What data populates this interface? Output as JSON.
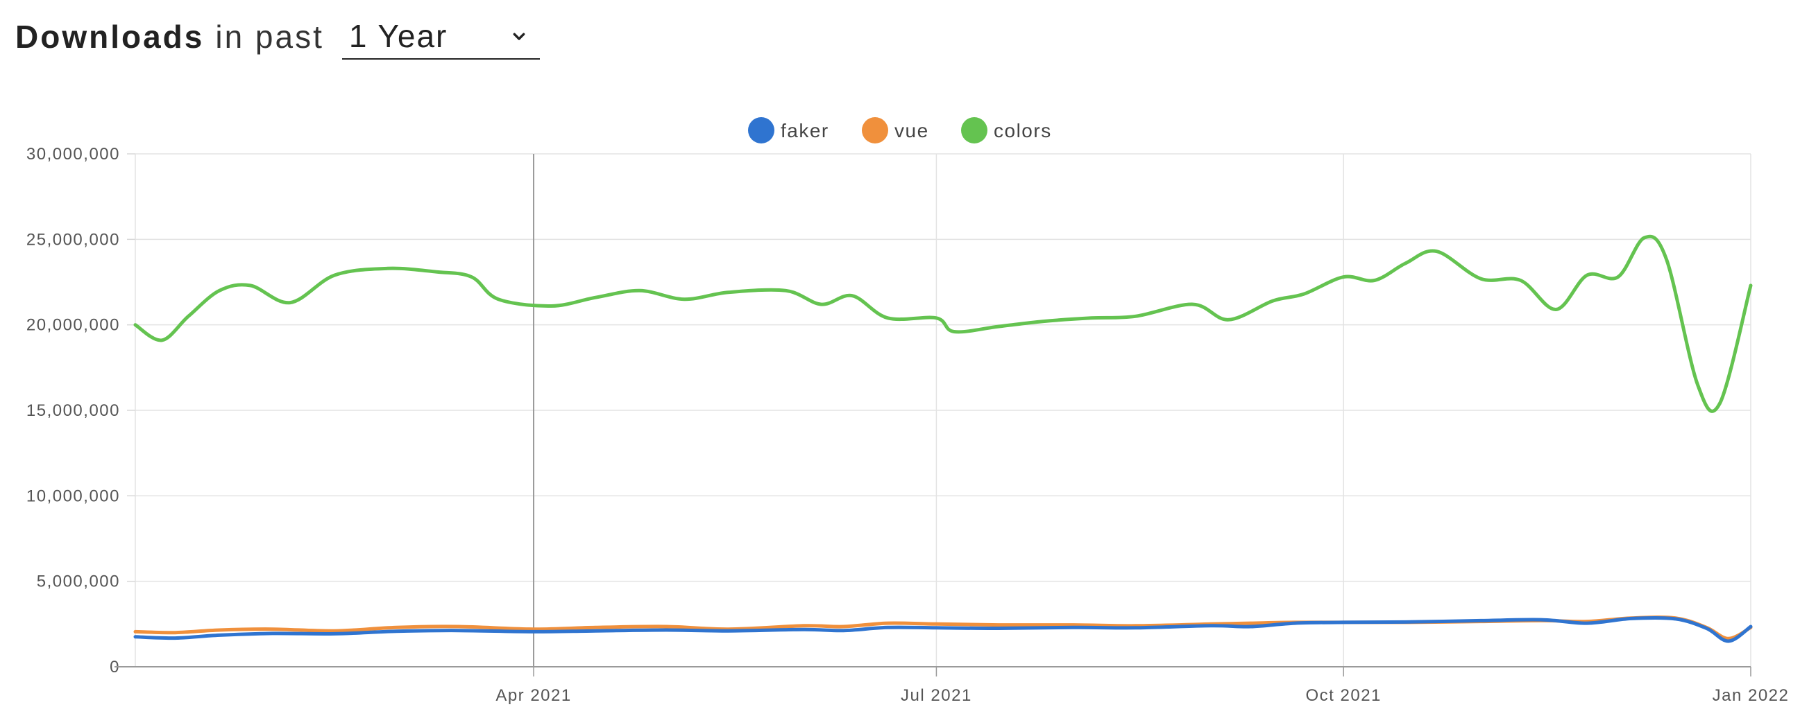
{
  "header": {
    "title": "Downloads",
    "subtitle": "in past",
    "period_value": "1 Year"
  },
  "chart_data": {
    "type": "line",
    "ylim": [
      0,
      30000000
    ],
    "y_ticks": [
      0,
      5000000,
      10000000,
      15000000,
      20000000,
      25000000,
      30000000
    ],
    "y_tick_labels": [
      "0",
      "5,000,000",
      "10,000,000",
      "15,000,000",
      "20,000,000",
      "25,000,000",
      "30,000,000"
    ],
    "x_range": [
      "2021-01-01",
      "2022-01-01"
    ],
    "x_ticks": [
      "2021-04-01",
      "2021-07-01",
      "2021-10-01",
      "2022-01-01"
    ],
    "x_tick_labels": [
      "Apr 2021",
      "Jul 2021",
      "Oct 2021",
      "Jan 2022"
    ],
    "grid": true,
    "legend_position": "top-center",
    "series": [
      {
        "name": "faker",
        "color": "#2f74d0",
        "points": [
          [
            "2021-01-01",
            1750000
          ],
          [
            "2021-01-10",
            1680000
          ],
          [
            "2021-01-20",
            1850000
          ],
          [
            "2021-02-01",
            1950000
          ],
          [
            "2021-02-15",
            1930000
          ],
          [
            "2021-03-01",
            2080000
          ],
          [
            "2021-03-15",
            2120000
          ],
          [
            "2021-04-01",
            2050000
          ],
          [
            "2021-04-15",
            2100000
          ],
          [
            "2021-05-01",
            2150000
          ],
          [
            "2021-05-15",
            2100000
          ],
          [
            "2021-06-01",
            2180000
          ],
          [
            "2021-06-10",
            2120000
          ],
          [
            "2021-06-20",
            2300000
          ],
          [
            "2021-07-01",
            2280000
          ],
          [
            "2021-07-15",
            2250000
          ],
          [
            "2021-08-01",
            2300000
          ],
          [
            "2021-08-15",
            2280000
          ],
          [
            "2021-09-01",
            2400000
          ],
          [
            "2021-09-10",
            2350000
          ],
          [
            "2021-09-20",
            2550000
          ],
          [
            "2021-10-01",
            2600000
          ],
          [
            "2021-10-15",
            2620000
          ],
          [
            "2021-11-01",
            2700000
          ],
          [
            "2021-11-15",
            2750000
          ],
          [
            "2021-11-25",
            2550000
          ],
          [
            "2021-12-05",
            2820000
          ],
          [
            "2021-12-15",
            2800000
          ],
          [
            "2021-12-22",
            2250000
          ],
          [
            "2021-12-27",
            1500000
          ],
          [
            "2022-01-01",
            2350000
          ]
        ]
      },
      {
        "name": "vue",
        "color": "#f0903c",
        "points": [
          [
            "2021-01-01",
            2050000
          ],
          [
            "2021-01-10",
            2000000
          ],
          [
            "2021-01-20",
            2150000
          ],
          [
            "2021-02-01",
            2200000
          ],
          [
            "2021-02-15",
            2100000
          ],
          [
            "2021-03-01",
            2300000
          ],
          [
            "2021-03-15",
            2350000
          ],
          [
            "2021-04-01",
            2200000
          ],
          [
            "2021-04-15",
            2300000
          ],
          [
            "2021-05-01",
            2350000
          ],
          [
            "2021-05-15",
            2200000
          ],
          [
            "2021-06-01",
            2400000
          ],
          [
            "2021-06-10",
            2350000
          ],
          [
            "2021-06-20",
            2550000
          ],
          [
            "2021-07-01",
            2500000
          ],
          [
            "2021-07-15",
            2450000
          ],
          [
            "2021-08-01",
            2450000
          ],
          [
            "2021-08-15",
            2400000
          ],
          [
            "2021-09-01",
            2500000
          ],
          [
            "2021-09-10",
            2550000
          ],
          [
            "2021-09-20",
            2600000
          ],
          [
            "2021-10-01",
            2600000
          ],
          [
            "2021-10-15",
            2600000
          ],
          [
            "2021-11-01",
            2650000
          ],
          [
            "2021-11-15",
            2700000
          ],
          [
            "2021-11-25",
            2650000
          ],
          [
            "2021-12-05",
            2850000
          ],
          [
            "2021-12-15",
            2850000
          ],
          [
            "2021-12-22",
            2300000
          ],
          [
            "2021-12-27",
            1650000
          ],
          [
            "2022-01-01",
            2300000
          ]
        ]
      },
      {
        "name": "colors",
        "color": "#64c350",
        "points": [
          [
            "2021-01-01",
            20000000
          ],
          [
            "2021-01-07",
            19100000
          ],
          [
            "2021-01-13",
            20500000
          ],
          [
            "2021-01-20",
            22000000
          ],
          [
            "2021-01-27",
            22300000
          ],
          [
            "2021-02-05",
            21300000
          ],
          [
            "2021-02-15",
            22900000
          ],
          [
            "2021-02-27",
            23300000
          ],
          [
            "2021-03-10",
            23100000
          ],
          [
            "2021-03-18",
            22800000
          ],
          [
            "2021-03-24",
            21500000
          ],
          [
            "2021-04-05",
            21100000
          ],
          [
            "2021-04-15",
            21600000
          ],
          [
            "2021-04-25",
            22000000
          ],
          [
            "2021-05-05",
            21500000
          ],
          [
            "2021-05-15",
            21900000
          ],
          [
            "2021-05-28",
            22000000
          ],
          [
            "2021-06-05",
            21200000
          ],
          [
            "2021-06-12",
            21700000
          ],
          [
            "2021-06-20",
            20400000
          ],
          [
            "2021-07-01",
            20400000
          ],
          [
            "2021-07-05",
            19600000
          ],
          [
            "2021-07-15",
            19900000
          ],
          [
            "2021-07-25",
            20200000
          ],
          [
            "2021-08-05",
            20400000
          ],
          [
            "2021-08-15",
            20500000
          ],
          [
            "2021-08-28",
            21200000
          ],
          [
            "2021-09-05",
            20300000
          ],
          [
            "2021-09-15",
            21400000
          ],
          [
            "2021-09-22",
            21800000
          ],
          [
            "2021-10-01",
            22800000
          ],
          [
            "2021-10-08",
            22600000
          ],
          [
            "2021-10-15",
            23600000
          ],
          [
            "2021-10-22",
            24300000
          ],
          [
            "2021-11-01",
            22700000
          ],
          [
            "2021-11-10",
            22600000
          ],
          [
            "2021-11-18",
            20900000
          ],
          [
            "2021-11-25",
            22900000
          ],
          [
            "2021-12-02",
            22800000
          ],
          [
            "2021-12-08",
            25100000
          ],
          [
            "2021-12-13",
            23800000
          ],
          [
            "2021-12-20",
            16500000
          ],
          [
            "2021-12-25",
            15400000
          ],
          [
            "2022-01-01",
            22300000
          ]
        ]
      }
    ]
  }
}
